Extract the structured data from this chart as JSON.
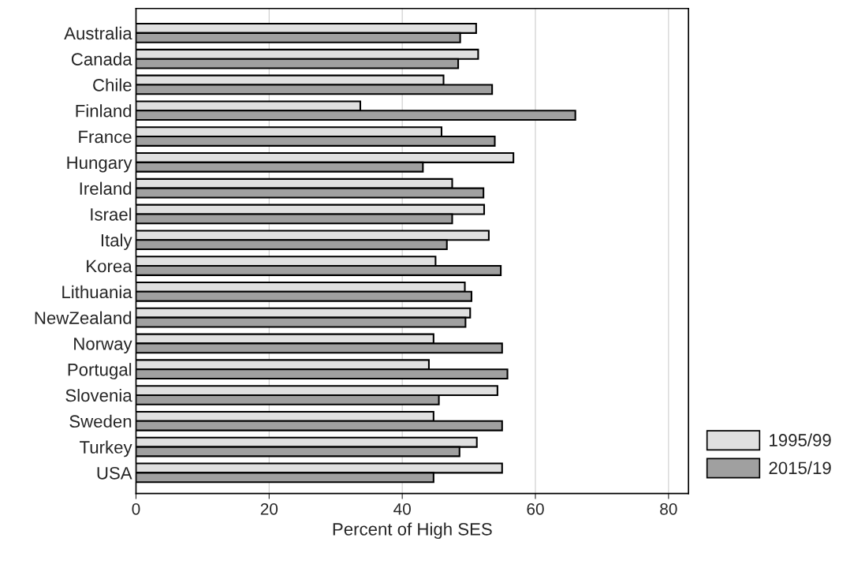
{
  "chart_data": {
    "type": "bar",
    "orientation": "horizontal",
    "xlabel": "Percent of High SES",
    "categories": [
      "Australia",
      "Canada",
      "Chile",
      "Finland",
      "France",
      "Hungary",
      "Ireland",
      "Israel",
      "Italy",
      "Korea",
      "Lithuania",
      "NewZealand",
      "Norway",
      "Portugal",
      "Slovenia",
      "Sweden",
      "Turkey",
      "USA"
    ],
    "series": [
      {
        "name": "1995/99",
        "color": "#e0e0e0",
        "values": [
          51.1,
          51.4,
          46.2,
          33.7,
          45.9,
          56.7,
          47.5,
          52.3,
          53.0,
          45.0,
          49.4,
          50.2,
          44.7,
          44.0,
          54.3,
          44.7,
          51.2,
          55.0
        ]
      },
      {
        "name": "2015/19",
        "color": "#a0a0a0",
        "values": [
          48.7,
          48.4,
          53.5,
          66.0,
          53.9,
          43.1,
          52.2,
          47.5,
          46.7,
          54.8,
          50.4,
          49.5,
          55.0,
          55.8,
          45.5,
          55.0,
          48.6,
          44.7
        ]
      }
    ],
    "xlim": [
      0,
      83
    ],
    "xticks": [
      0,
      20,
      40,
      60,
      80
    ],
    "grid": "x",
    "legend": "bottom right"
  }
}
